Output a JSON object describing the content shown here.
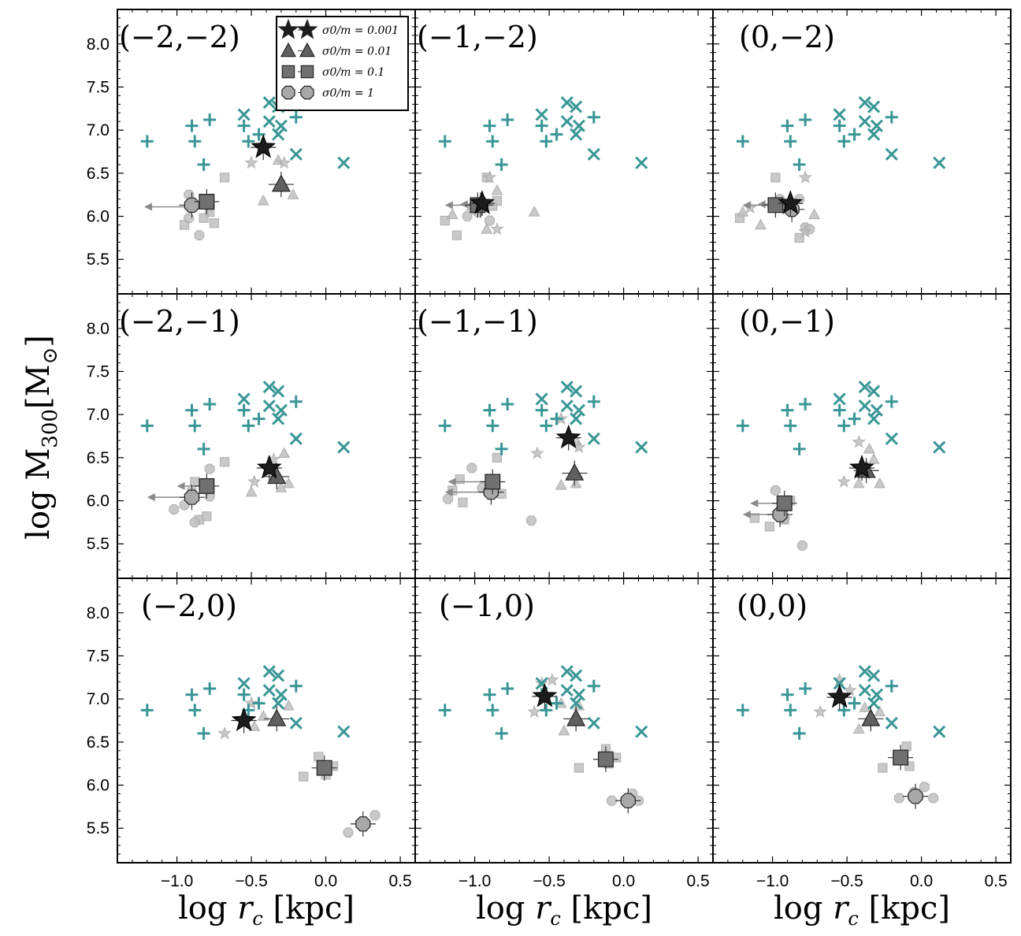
{
  "figure": {
    "ylabel_text": "log M",
    "ylabel_sub": "300",
    "ylabel_unit_open": "[M",
    "ylabel_unit_sym": "⊙",
    "ylabel_unit_close": "]",
    "xlabel_log": "log ",
    "xlabel_var": "r",
    "xlabel_sub": "c",
    "xlabel_unit": " [kpc]",
    "colors": {
      "teal": "#3a9696",
      "dark": "#3c3c3c",
      "mid": "#707070",
      "light": "#c0c0c0",
      "frame": "#000000"
    }
  },
  "legend": {
    "entries": [
      {
        "label": "σ0/m = 0.001",
        "marker": "star"
      },
      {
        "label": "σ0/m = 0.01",
        "marker": "triangle"
      },
      {
        "label": "σ0/m = 0.1",
        "marker": "square"
      },
      {
        "label": "σ0/m = 1",
        "marker": "circle"
      }
    ]
  },
  "chart_data": {
    "type": "scatter",
    "xlim": [
      -1.4,
      0.6
    ],
    "ylim": [
      5.1,
      8.4
    ],
    "xticks": [
      "−1.0",
      "−0.5",
      "0.0",
      "0.5"
    ],
    "yticks": [
      "5.5",
      "6.0",
      "6.5",
      "7.0",
      "7.5",
      "8.0"
    ],
    "xtick_values": [
      -1.0,
      -0.5,
      0.0,
      0.5
    ],
    "ytick_values": [
      5.5,
      6.0,
      6.5,
      7.0,
      7.5,
      8.0
    ],
    "observed_plus": [
      [
        -1.2,
        6.87
      ],
      [
        -0.9,
        7.05
      ],
      [
        -0.88,
        6.87
      ],
      [
        -0.82,
        6.6
      ],
      [
        -0.78,
        7.12
      ],
      [
        -0.55,
        7.05
      ],
      [
        -0.52,
        6.87
      ],
      [
        -0.45,
        6.95
      ],
      [
        -0.2,
        7.15
      ]
    ],
    "observed_cross": [
      [
        -0.55,
        7.18
      ],
      [
        -0.38,
        7.32
      ],
      [
        -0.32,
        7.27
      ],
      [
        -0.38,
        7.1
      ],
      [
        -0.3,
        7.05
      ],
      [
        -0.32,
        6.95
      ],
      [
        -0.2,
        6.72
      ],
      [
        0.12,
        6.62
      ]
    ],
    "panels": [
      {
        "label": "(−2,−2)",
        "main": {
          "star": [
            -0.42,
            6.8
          ],
          "triangle": [
            -0.3,
            6.37
          ],
          "square": [
            -0.8,
            6.17
          ],
          "circle": [
            -0.9,
            6.13
          ]
        },
        "arrows": [
          [
            -0.9,
            6.11,
            -1.22
          ]
        ],
        "faint": {
          "star": [
            [
              -0.5,
              6.62
            ],
            [
              -0.28,
              6.62
            ]
          ],
          "triangle": [
            [
              -0.32,
              6.65
            ],
            [
              -0.42,
              6.18
            ],
            [
              -0.22,
              6.25
            ]
          ],
          "square": [
            [
              -0.95,
              5.9
            ],
            [
              -0.78,
              6.05
            ],
            [
              -0.68,
              6.45
            ],
            [
              -0.75,
              5.92
            ],
            [
              -0.82,
              5.98
            ]
          ],
          "circle": [
            [
              -0.92,
              6.25
            ],
            [
              -0.92,
              5.98
            ],
            [
              -0.85,
              5.78
            ],
            [
              -0.78,
              6.12
            ]
          ]
        }
      },
      {
        "label": "(−1,−2)",
        "main": {
          "star": [
            -0.95,
            6.15
          ],
          "triangle": null,
          "square": [
            -0.98,
            6.13
          ],
          "circle": [
            -0.96,
            6.13
          ]
        },
        "arrows": [
          [
            -1.0,
            6.13,
            -1.2
          ],
          [
            -1.0,
            6.14,
            -1.1
          ]
        ],
        "faint": {
          "star": [
            [
              -0.9,
              6.45
            ],
            [
              -0.85,
              5.85
            ]
          ],
          "triangle": [
            [
              -0.85,
              6.3
            ],
            [
              -0.92,
              5.85
            ],
            [
              -0.6,
              6.05
            ],
            [
              -1.15,
              6.02
            ],
            [
              -1.02,
              6.12
            ]
          ],
          "square": [
            [
              -1.2,
              5.95
            ],
            [
              -1.12,
              5.78
            ],
            [
              -0.92,
              6.45
            ],
            [
              -0.88,
              6.12
            ],
            [
              -0.85,
              6.18
            ]
          ],
          "circle": [
            [
              -0.9,
              5.95
            ],
            [
              -0.98,
              6.05
            ],
            [
              -1.05,
              6.0
            ]
          ]
        }
      },
      {
        "label": "(0,−2)",
        "main": {
          "star": [
            -0.88,
            6.15
          ],
          "triangle": null,
          "square": [
            -0.98,
            6.13
          ],
          "circle": [
            -0.87,
            6.08
          ]
        },
        "arrows": [
          [
            -1.0,
            6.13,
            -1.2
          ],
          [
            -1.0,
            6.14,
            -1.1
          ]
        ],
        "faint": {
          "star": [
            [
              -0.78,
              6.45
            ],
            [
              -0.78,
              5.82
            ],
            [
              -1.15,
              6.1
            ]
          ],
          "triangle": [
            [
              -1.2,
              6.05
            ],
            [
              -1.08,
              5.9
            ],
            [
              -0.92,
              6.12
            ],
            [
              -0.72,
              6.02
            ],
            [
              -1.0,
              6.15
            ]
          ],
          "square": [
            [
              -1.22,
              5.98
            ],
            [
              -0.98,
              6.45
            ],
            [
              -0.82,
              5.75
            ]
          ],
          "circle": [
            [
              -0.78,
              5.87
            ],
            [
              -0.82,
              6.2
            ],
            [
              -0.95,
              6.2
            ],
            [
              -0.75,
              5.85
            ]
          ]
        }
      },
      {
        "label": "(−2,−1)",
        "main": {
          "star": [
            -0.38,
            6.38
          ],
          "triangle": [
            -0.33,
            6.28
          ],
          "square": [
            -0.8,
            6.17
          ],
          "circle": [
            -0.9,
            6.04
          ]
        },
        "arrows": [
          [
            -0.8,
            6.17,
            -1.0
          ],
          [
            -0.9,
            6.04,
            -1.2
          ]
        ],
        "faint": {
          "star": [
            [
              -0.48,
              6.22
            ],
            [
              -0.35,
              6.48
            ]
          ],
          "triangle": [
            [
              -0.5,
              6.1
            ],
            [
              -0.28,
              6.55
            ],
            [
              -0.25,
              6.2
            ],
            [
              -0.3,
              6.15
            ]
          ],
          "square": [
            [
              -0.9,
              6.1
            ],
            [
              -0.88,
              6.22
            ],
            [
              -0.85,
              5.78
            ],
            [
              -0.8,
              5.82
            ],
            [
              -0.68,
              6.45
            ]
          ],
          "circle": [
            [
              -1.02,
              5.9
            ],
            [
              -0.95,
              5.95
            ],
            [
              -0.88,
              5.75
            ],
            [
              -0.78,
              6.37
            ],
            [
              -0.78,
              6.05
            ]
          ]
        }
      },
      {
        "label": "(−1,−1)",
        "main": {
          "star": [
            -0.37,
            6.73
          ],
          "triangle": [
            -0.33,
            6.32
          ],
          "square": [
            -0.88,
            6.22
          ],
          "circle": [
            -0.89,
            6.1
          ]
        },
        "arrows": [
          [
            -0.88,
            6.22,
            -1.18
          ],
          [
            -0.89,
            6.1,
            -1.2
          ]
        ],
        "faint": {
          "star": [
            [
              -0.58,
              6.55
            ],
            [
              -0.3,
              6.62
            ],
            [
              -0.42,
              6.95
            ]
          ],
          "triangle": [
            [
              -0.42,
              6.18
            ],
            [
              -0.32,
              6.7
            ],
            [
              -0.32,
              6.2
            ]
          ],
          "square": [
            [
              -1.15,
              6.12
            ],
            [
              -1.1,
              6.25
            ],
            [
              -1.08,
              5.98
            ],
            [
              -0.85,
              6.5
            ],
            [
              -0.82,
              6.08
            ]
          ],
          "circle": [
            [
              -1.18,
              6.02
            ],
            [
              -0.95,
              6.15
            ],
            [
              -1.02,
              6.38
            ],
            [
              -0.62,
              5.77
            ]
          ]
        }
      },
      {
        "label": "(0,−1)",
        "main": {
          "star": [
            -0.4,
            6.38
          ],
          "triangle": [
            -0.37,
            6.35
          ],
          "square": [
            -0.92,
            5.97
          ],
          "circle": [
            -0.95,
            5.84
          ]
        },
        "arrows": [
          [
            -0.92,
            5.97,
            -1.15
          ],
          [
            -0.95,
            5.84,
            -1.2
          ]
        ],
        "faint": {
          "star": [
            [
              -0.52,
              6.22
            ],
            [
              -0.42,
              6.68
            ]
          ],
          "triangle": [
            [
              -0.42,
              6.2
            ],
            [
              -0.32,
              6.48
            ],
            [
              -0.28,
              6.2
            ],
            [
              -0.35,
              6.6
            ]
          ],
          "square": [
            [
              -1.12,
              5.8
            ],
            [
              -1.02,
              5.7
            ],
            [
              -0.92,
              5.78
            ],
            [
              -0.88,
              6.0
            ]
          ],
          "circle": [
            [
              -0.98,
              6.12
            ],
            [
              -0.95,
              5.85
            ],
            [
              -0.92,
              5.8
            ],
            [
              -0.8,
              5.48
            ]
          ]
        }
      },
      {
        "label": "(−2,0)",
        "main": {
          "star": [
            -0.55,
            6.75
          ],
          "triangle": [
            -0.33,
            6.77
          ],
          "square": [
            -0.01,
            6.2
          ],
          "circle": [
            0.25,
            5.55
          ]
        },
        "arrows": [],
        "faint": {
          "star": [
            [
              -0.68,
              6.6
            ],
            [
              -0.5,
              6.95
            ]
          ],
          "triangle": [
            [
              -0.48,
              6.68
            ],
            [
              -0.25,
              6.92
            ],
            [
              -0.42,
              6.8
            ]
          ],
          "square": [
            [
              -0.15,
              6.1
            ],
            [
              -0.05,
              6.33
            ],
            [
              0.05,
              6.22
            ],
            [
              0.0,
              6.12
            ]
          ],
          "circle": [
            [
              0.15,
              5.45
            ],
            [
              0.33,
              5.65
            ]
          ]
        }
      },
      {
        "label": "(−1,0)",
        "main": {
          "star": [
            -0.53,
            7.03
          ],
          "triangle": [
            -0.32,
            6.77
          ],
          "square": [
            -0.12,
            6.3
          ],
          "circle": [
            0.03,
            5.82
          ]
        },
        "arrows": [],
        "faint": {
          "star": [
            [
              -0.6,
              6.85
            ],
            [
              -0.55,
              7.18
            ],
            [
              -0.48,
              7.22
            ]
          ],
          "triangle": [
            [
              -0.4,
              6.63
            ],
            [
              -0.42,
              6.95
            ],
            [
              -0.3,
              6.92
            ]
          ],
          "square": [
            [
              -0.3,
              6.2
            ],
            [
              -0.12,
              6.42
            ],
            [
              -0.05,
              6.32
            ],
            [
              -0.1,
              6.25
            ]
          ],
          "circle": [
            [
              -0.08,
              5.82
            ],
            [
              0.1,
              5.82
            ],
            [
              0.06,
              5.9
            ]
          ]
        }
      },
      {
        "label": "(0,0)",
        "main": {
          "star": [
            -0.55,
            7.02
          ],
          "triangle": [
            -0.34,
            6.77
          ],
          "square": [
            -0.14,
            6.32
          ],
          "circle": [
            -0.04,
            5.87
          ]
        },
        "arrows": [],
        "faint": {
          "star": [
            [
              -0.68,
              6.85
            ],
            [
              -0.55,
              7.22
            ],
            [
              -0.48,
              7.1
            ]
          ],
          "triangle": [
            [
              -0.42,
              6.65
            ],
            [
              -0.38,
              6.9
            ],
            [
              -0.28,
              6.85
            ]
          ],
          "square": [
            [
              -0.26,
              6.2
            ],
            [
              -0.1,
              6.45
            ],
            [
              -0.08,
              6.22
            ],
            [
              -0.12,
              6.35
            ]
          ],
          "circle": [
            [
              -0.15,
              5.85
            ],
            [
              -0.05,
              5.92
            ],
            [
              0.02,
              5.98
            ],
            [
              0.08,
              5.85
            ]
          ]
        }
      }
    ]
  }
}
